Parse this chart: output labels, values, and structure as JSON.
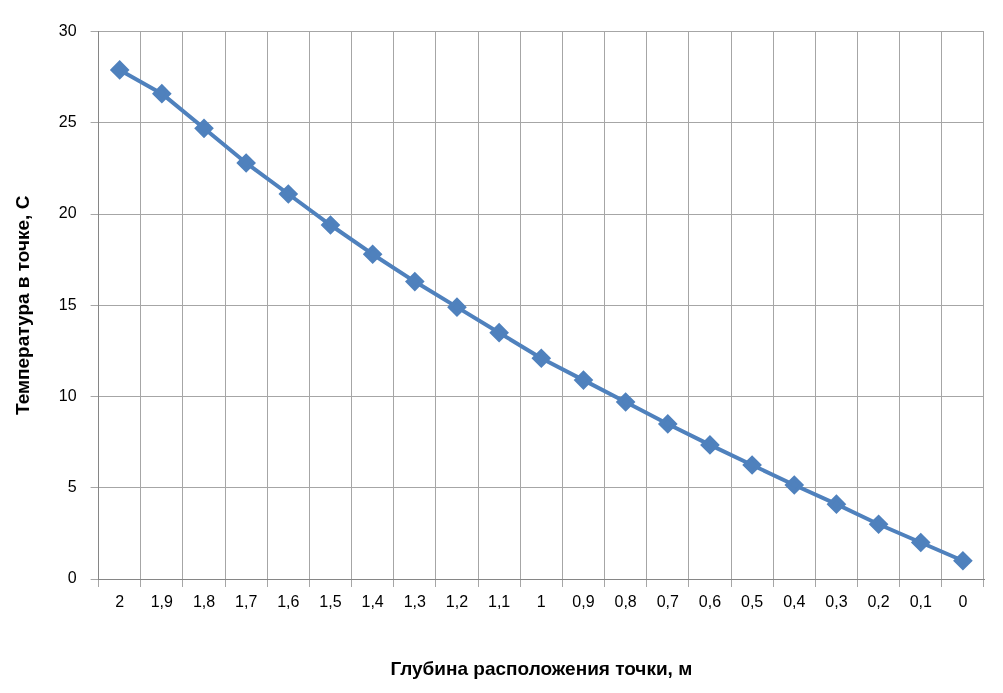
{
  "chart_data": {
    "type": "line",
    "xlabel": "Глубина расположения точки, м",
    "ylabel": "Температура в точке, С",
    "categories": [
      "2",
      "1,9",
      "1,8",
      "1,7",
      "1,6",
      "1,5",
      "1,4",
      "1,3",
      "1,2",
      "1,1",
      "1",
      "0,9",
      "0,8",
      "0,7",
      "0,6",
      "0,5",
      "0,4",
      "0,3",
      "0,2",
      "0,1",
      "0"
    ],
    "series": [
      {
        "color": "#4f81bd",
        "values": [
          27.9,
          26.6,
          24.7,
          22.8,
          21.1,
          19.4,
          17.8,
          16.3,
          14.9,
          13.5,
          12.1,
          10.9,
          9.7,
          8.5,
          7.35,
          6.25,
          5.15,
          4.1,
          3.0,
          2.0,
          1.0
        ]
      }
    ],
    "ylim": [
      0,
      30
    ],
    "yticks": [
      0,
      5,
      10,
      15,
      20,
      25,
      30
    ],
    "grid": true,
    "legend": false,
    "marker": "diamond",
    "line_style": "solid"
  }
}
